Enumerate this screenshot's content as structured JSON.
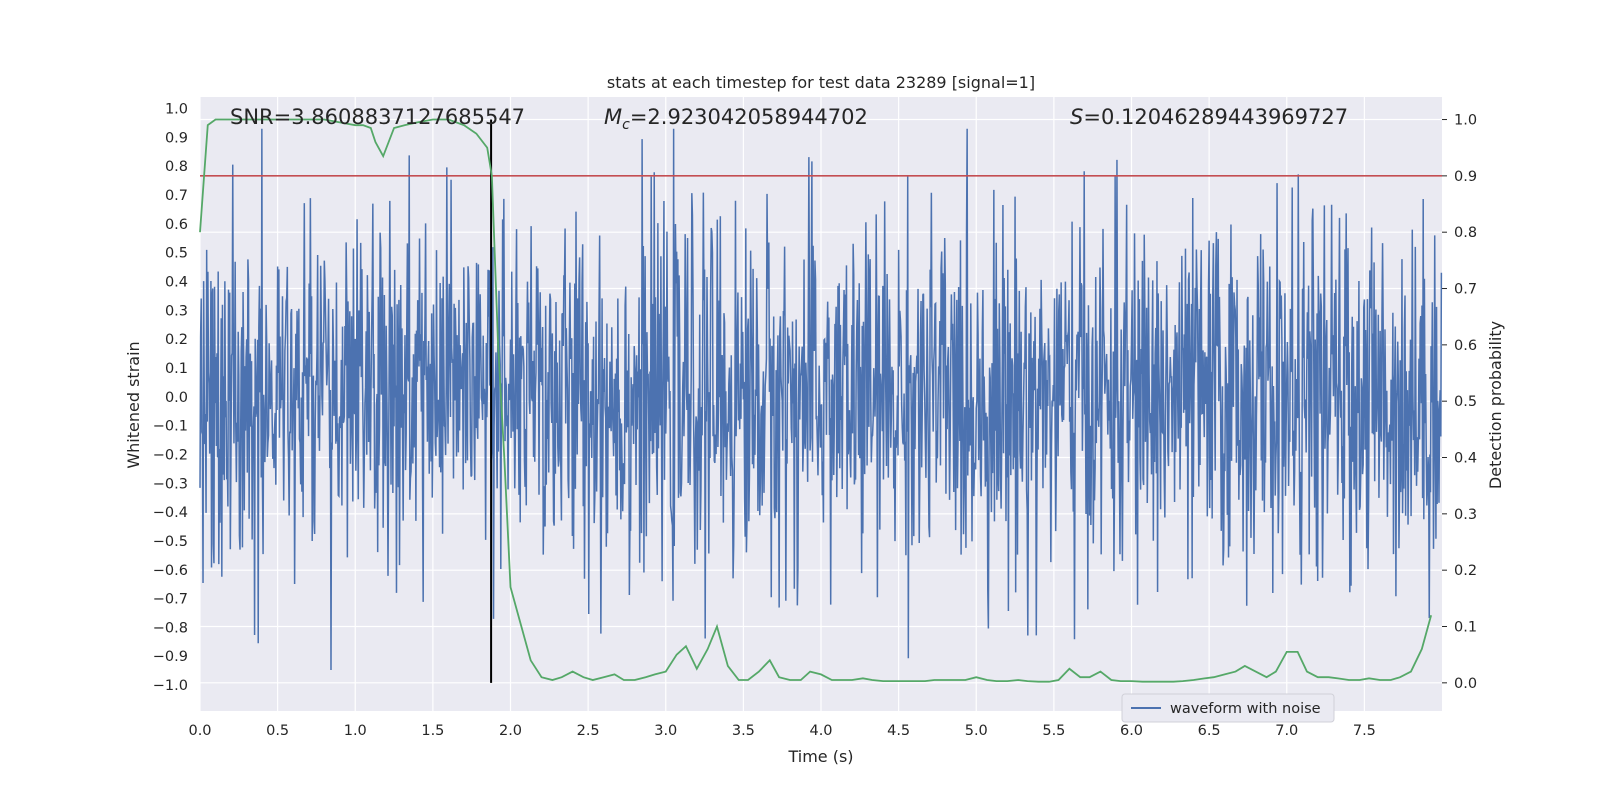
{
  "chart_data": {
    "type": "line",
    "title": "stats at each timestep for test data 23289 [signal=1]",
    "xlabel": "Time (s)",
    "ylabel_left": "Whitened strain",
    "ylabel_right": "Detection probability",
    "xlim": [
      0.0,
      8.0
    ],
    "ylim_left": [
      -1.09,
      1.04
    ],
    "ylim_right": [
      -0.05,
      1.04
    ],
    "x_ticks": [
      "0.0",
      "0.5",
      "1.0",
      "1.5",
      "2.0",
      "2.5",
      "3.0",
      "3.5",
      "4.0",
      "4.5",
      "5.0",
      "5.5",
      "6.0",
      "6.5",
      "7.0",
      "7.5"
    ],
    "y_ticks_left": [
      "1.0",
      "0.9",
      "0.8",
      "0.7",
      "0.6",
      "0.5",
      "0.4",
      "0.3",
      "0.2",
      "0.1",
      "0.0",
      "−0.1",
      "−0.2",
      "−0.3",
      "−0.4",
      "−0.5",
      "−0.6",
      "−0.7",
      "−0.8",
      "−0.9",
      "−1.0"
    ],
    "y_ticks_right": [
      "1.0",
      "0.9",
      "0.8",
      "0.7",
      "0.6",
      "0.5",
      "0.4",
      "0.3",
      "0.2",
      "0.1",
      "0.0"
    ],
    "grid": true,
    "threshold": {
      "value": 0.9,
      "axis": "right",
      "color": "#c44e52"
    },
    "marker_time": 1.875,
    "annotations": {
      "snr": "SNR=3.8608837127685547",
      "mc_label": "M",
      "mc_sub": "c",
      "mc_value": "=2.923042058944702",
      "s_label": "S",
      "s_value": "=0.12046289443969727"
    },
    "series": [
      {
        "name": "waveform with noise",
        "axis": "left",
        "color": "#4c72b0",
        "sample_count": 2048,
        "range": [
          -1.0,
          0.93
        ]
      },
      {
        "name": "detection probability",
        "axis": "right",
        "color": "#55a868",
        "x": [
          0.0,
          0.05,
          0.1,
          0.2,
          0.3,
          0.4,
          0.5,
          0.6,
          0.7,
          0.8,
          0.9,
          1.0,
          1.05,
          1.1,
          1.13,
          1.18,
          1.25,
          1.32,
          1.4,
          1.5,
          1.6,
          1.7,
          1.78,
          1.85,
          1.88,
          1.92,
          1.96,
          2.0,
          2.07,
          2.13,
          2.2,
          2.27,
          2.33,
          2.4,
          2.47,
          2.53,
          2.6,
          2.67,
          2.73,
          2.8,
          2.87,
          2.93,
          3.0,
          3.07,
          3.13,
          3.2,
          3.27,
          3.33,
          3.4,
          3.47,
          3.53,
          3.6,
          3.67,
          3.73,
          3.8,
          3.87,
          3.93,
          4.0,
          4.07,
          4.13,
          4.2,
          4.27,
          4.33,
          4.4,
          4.47,
          4.53,
          4.6,
          4.67,
          4.73,
          4.8,
          4.87,
          4.93,
          5.0,
          5.07,
          5.13,
          5.2,
          5.27,
          5.33,
          5.4,
          5.47,
          5.53,
          5.6,
          5.67,
          5.73,
          5.8,
          5.87,
          5.93,
          6.0,
          6.07,
          6.13,
          6.2,
          6.27,
          6.33,
          6.4,
          6.47,
          6.53,
          6.6,
          6.67,
          6.73,
          6.8,
          6.87,
          6.93,
          7.0,
          7.07,
          7.13,
          7.2,
          7.27,
          7.33,
          7.4,
          7.47,
          7.53,
          7.6,
          7.67,
          7.73,
          7.8,
          7.87,
          7.93
        ],
        "y": [
          0.8,
          0.99,
          1.0,
          1.0,
          1.0,
          1.0,
          1.0,
          1.0,
          1.0,
          1.0,
          0.995,
          0.99,
          0.99,
          0.985,
          0.96,
          0.935,
          0.985,
          0.99,
          0.995,
          1.0,
          1.0,
          0.99,
          0.975,
          0.95,
          0.9,
          0.6,
          0.4,
          0.17,
          0.1,
          0.04,
          0.01,
          0.005,
          0.01,
          0.02,
          0.01,
          0.005,
          0.01,
          0.015,
          0.005,
          0.005,
          0.01,
          0.015,
          0.02,
          0.05,
          0.065,
          0.025,
          0.06,
          0.1,
          0.03,
          0.005,
          0.005,
          0.02,
          0.04,
          0.01,
          0.005,
          0.005,
          0.02,
          0.015,
          0.005,
          0.005,
          0.005,
          0.008,
          0.005,
          0.003,
          0.003,
          0.003,
          0.003,
          0.003,
          0.005,
          0.005,
          0.005,
          0.005,
          0.01,
          0.005,
          0.003,
          0.003,
          0.005,
          0.003,
          0.002,
          0.002,
          0.005,
          0.025,
          0.01,
          0.01,
          0.02,
          0.005,
          0.003,
          0.003,
          0.002,
          0.002,
          0.002,
          0.002,
          0.003,
          0.005,
          0.008,
          0.01,
          0.015,
          0.02,
          0.03,
          0.02,
          0.01,
          0.02,
          0.055,
          0.055,
          0.02,
          0.01,
          0.01,
          0.008,
          0.005,
          0.005,
          0.008,
          0.005,
          0.005,
          0.01,
          0.02,
          0.06,
          0.12
        ]
      }
    ],
    "legend": {
      "position": "bottom-right",
      "entries": [
        "waveform with noise"
      ]
    }
  }
}
